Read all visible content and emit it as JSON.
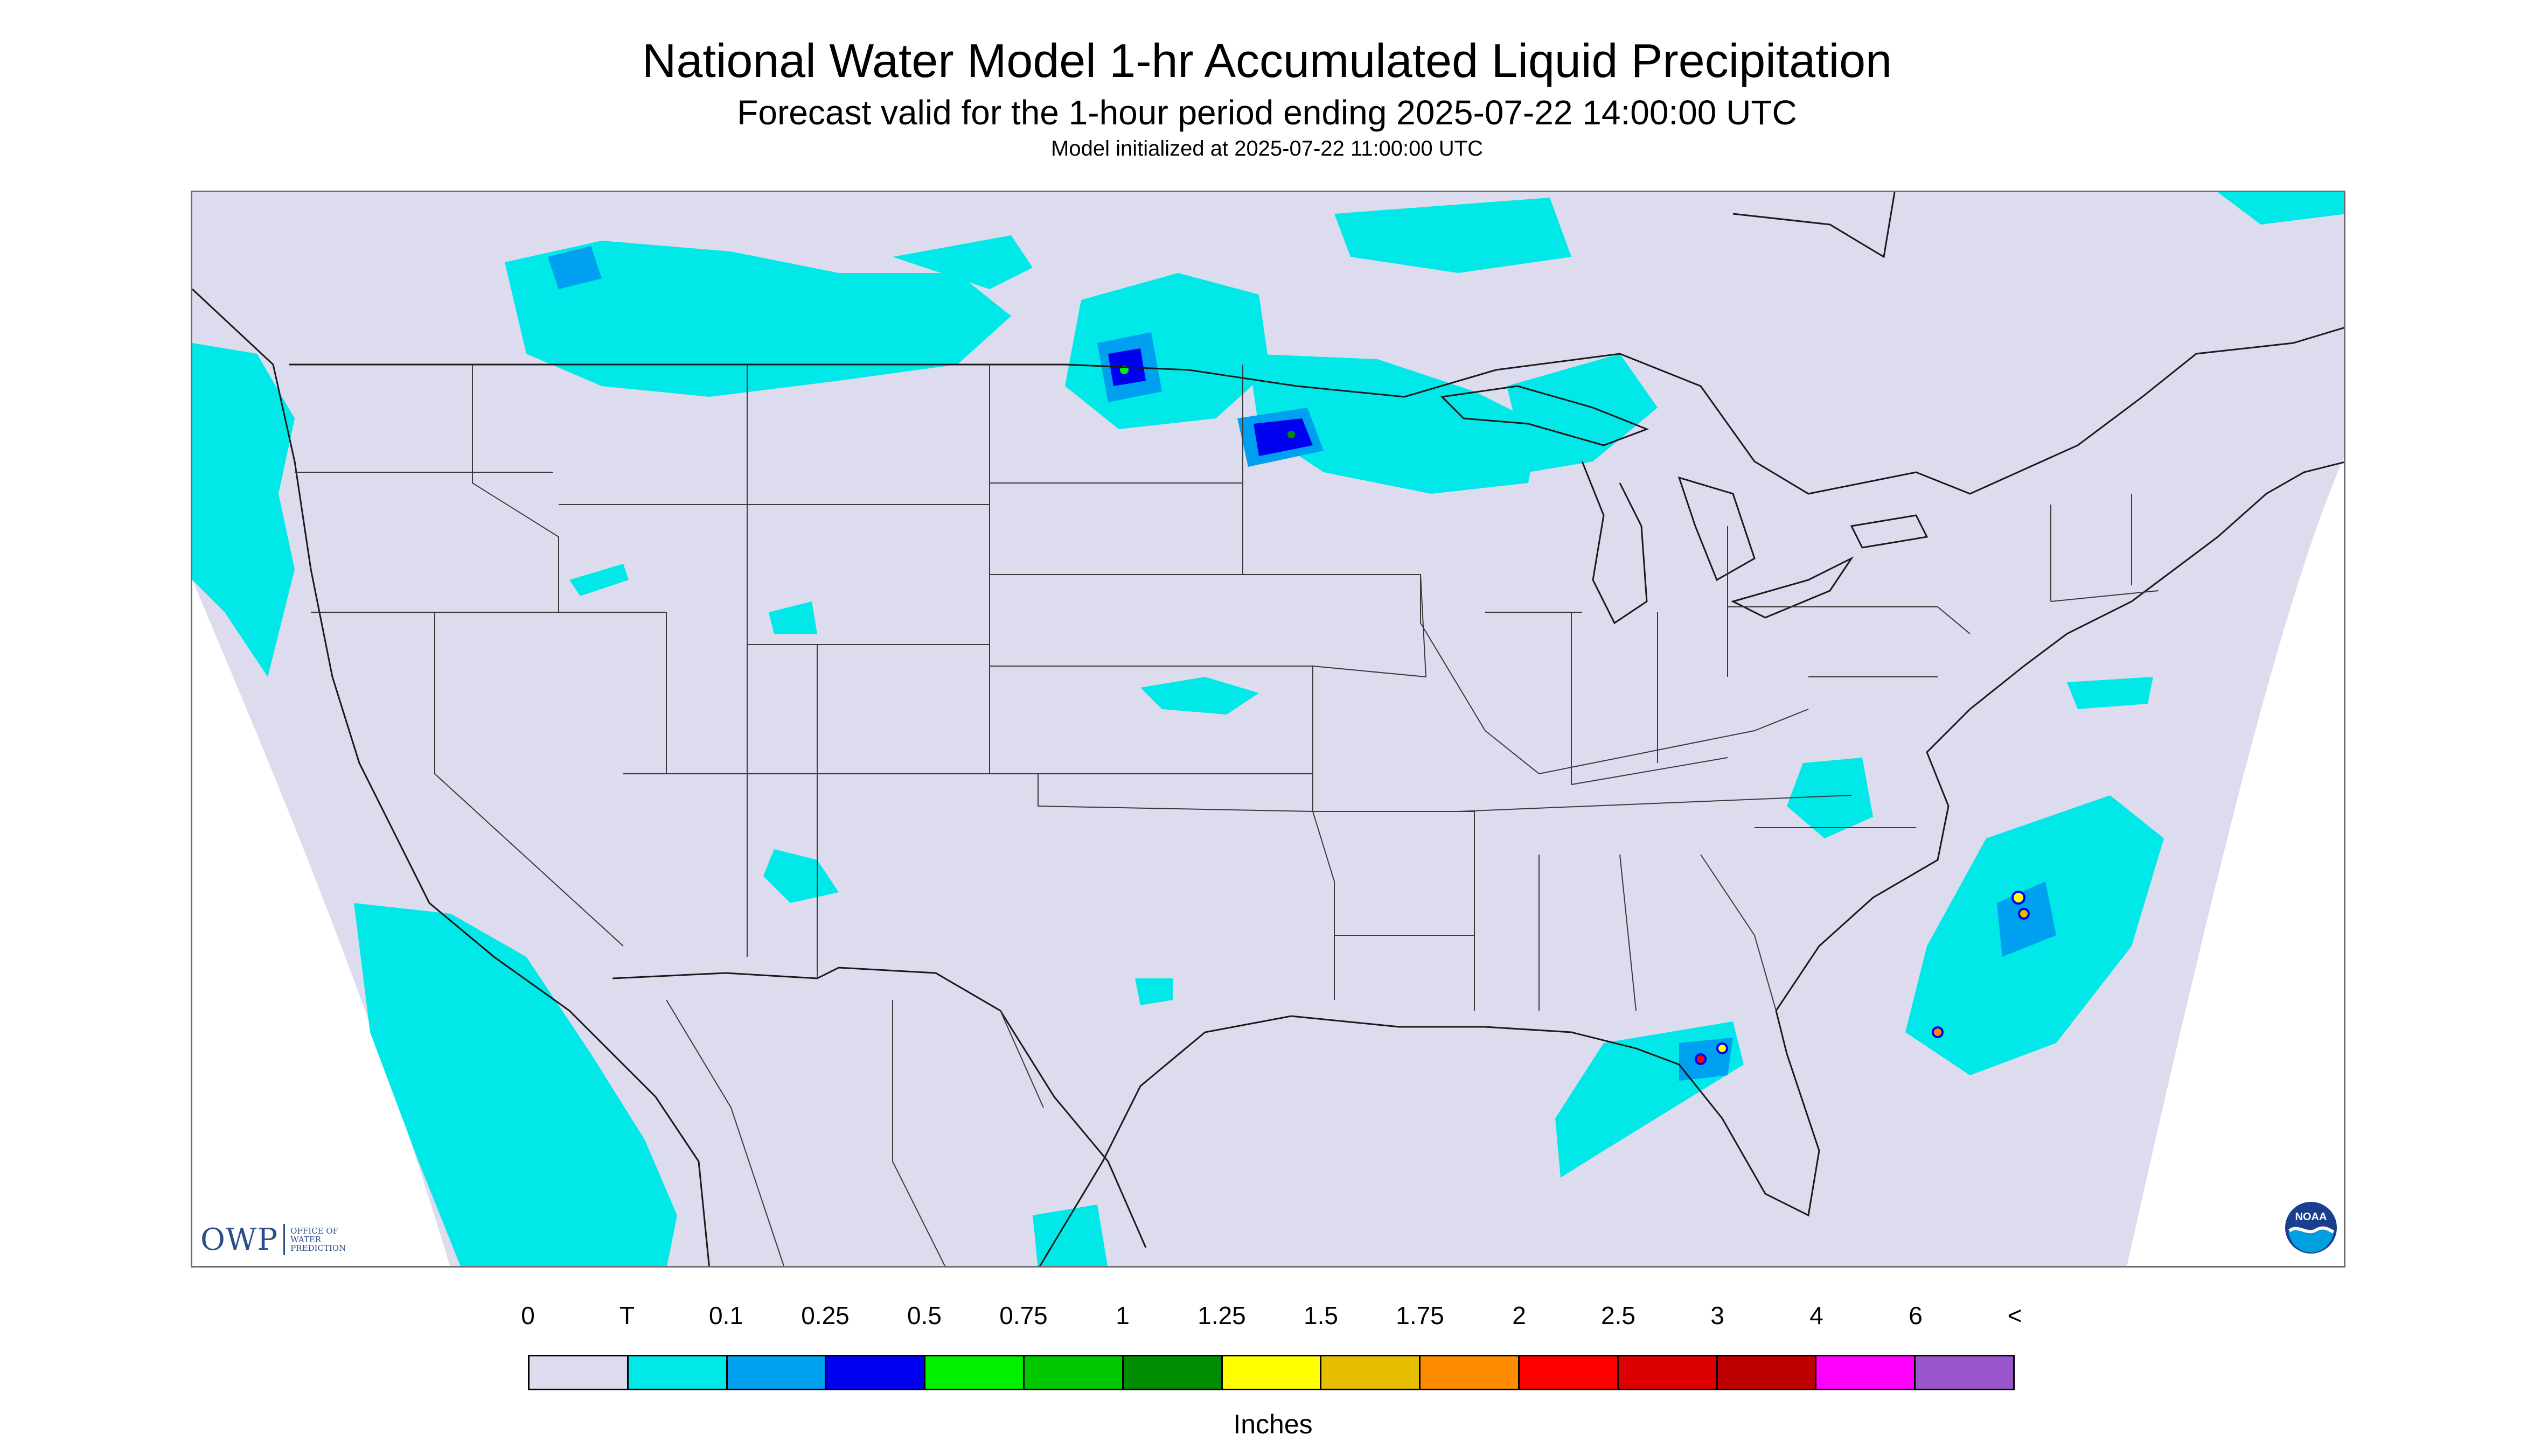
{
  "title": "National Water Model 1-hr Accumulated Liquid Precipitation",
  "subtitle": "Forecast valid for the 1-hour period ending 2025-07-22 14:00:00 UTC",
  "init_note": "Model initialized at 2025-07-22 11:00:00 UTC",
  "logos": {
    "owp_letters": "OWP",
    "owp_words": "OFFICE OF\nWATER\nPREDICTION",
    "noaa_text": "NOAA"
  },
  "colors": {
    "no_data": "#ffffff",
    "domain_fill": "#dcdcee",
    "border_lines": "#3a3a3a",
    "coast_lines": "#1a1a1a"
  },
  "legend": {
    "units": "Inches",
    "labels": [
      "0",
      "T",
      "0.1",
      "0.25",
      "0.5",
      "0.75",
      "1",
      "1.25",
      "1.5",
      "1.75",
      "2",
      "2.5",
      "3",
      "4",
      "6",
      "<"
    ],
    "colors": [
      "#dcdcee",
      "#00e8e8",
      "#00a0f0",
      "#0000f0",
      "#00f000",
      "#00c800",
      "#008c00",
      "#ffff00",
      "#e6be00",
      "#ff8c00",
      "#ff0000",
      "#dc0000",
      "#be0000",
      "#ff00ff",
      "#9955cc"
    ]
  }
}
